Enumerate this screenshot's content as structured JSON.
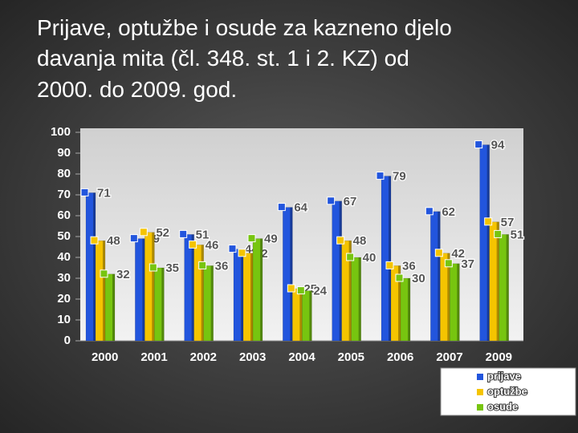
{
  "chart_data": {
    "type": "bar",
    "title": [
      "Prijave, optužbe i osude za kazneno djelo",
      "davanja mita (čl. 348. st. 1 i 2. KZ) od",
      "2000. do 2009. god."
    ],
    "categories": [
      "2000",
      "2001",
      "2002",
      "2003",
      "2004",
      "2005",
      "2006",
      "2007",
      "2009"
    ],
    "series": [
      {
        "name": "prijave",
        "color": "#2255dd",
        "values": [
          71,
          49,
          51,
          44,
          64,
          67,
          79,
          62,
          94
        ]
      },
      {
        "name": "optužbe",
        "color": "#f5c400",
        "values": [
          48,
          52,
          46,
          42,
          25,
          48,
          36,
          42,
          57
        ]
      },
      {
        "name": "osude",
        "color": "#77c510",
        "values": [
          32,
          35,
          36,
          49,
          24,
          40,
          30,
          37,
          51
        ]
      }
    ],
    "ylim": [
      0,
      100
    ],
    "yticks": [
      0,
      10,
      20,
      30,
      40,
      50,
      60,
      70,
      80,
      90,
      100
    ]
  }
}
